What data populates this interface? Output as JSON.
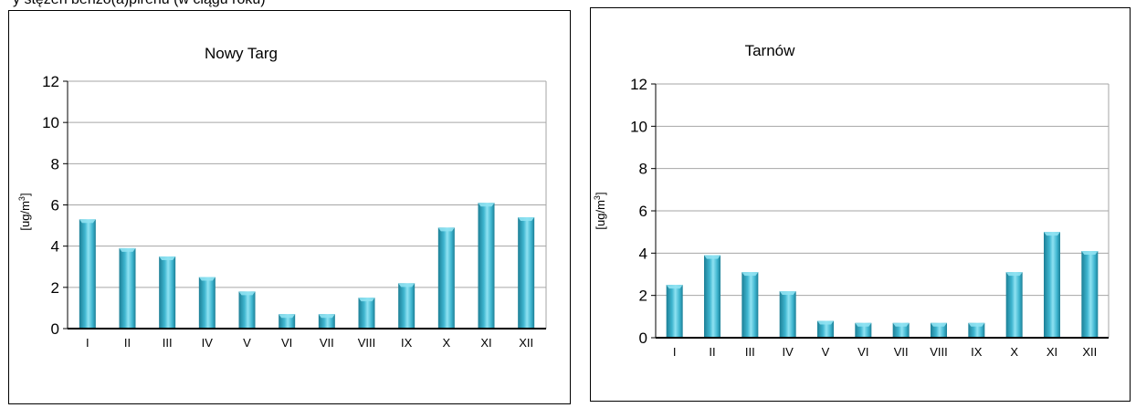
{
  "caption": "y stężeń benzo(a)pirenu (w ciągu roku)",
  "chart_data": [
    {
      "type": "bar",
      "title": "Nowy Targ",
      "ylabel": "[ug/m3]",
      "ylim": [
        0,
        12
      ],
      "yticks": [
        0,
        2,
        4,
        6,
        8,
        10,
        12
      ],
      "grid": true,
      "categories": [
        "I",
        "II",
        "III",
        "IV",
        "V",
        "VI",
        "VII",
        "VIII",
        "IX",
        "X",
        "XI",
        "XII"
      ],
      "values": [
        5.3,
        3.9,
        3.5,
        2.5,
        1.8,
        0.7,
        0.7,
        1.5,
        2.2,
        4.9,
        6.1,
        5.4
      ]
    },
    {
      "type": "bar",
      "title": "Tarnów",
      "ylabel": "[ug/m3]",
      "ylim": [
        0,
        12
      ],
      "yticks": [
        0,
        2,
        4,
        6,
        8,
        10,
        12
      ],
      "grid": true,
      "categories": [
        "I",
        "II",
        "III",
        "IV",
        "V",
        "VI",
        "VII",
        "VIII",
        "IX",
        "X",
        "XI",
        "XII"
      ],
      "values": [
        2.5,
        3.9,
        3.1,
        2.2,
        0.8,
        0.7,
        0.7,
        0.7,
        0.7,
        3.1,
        5.0,
        4.1
      ]
    }
  ],
  "colors": {
    "bar": "#3fb6d0",
    "bar_dark": "#1c7f96",
    "bar_light": "#8fe2f2",
    "grid": "#a6a6a6"
  }
}
